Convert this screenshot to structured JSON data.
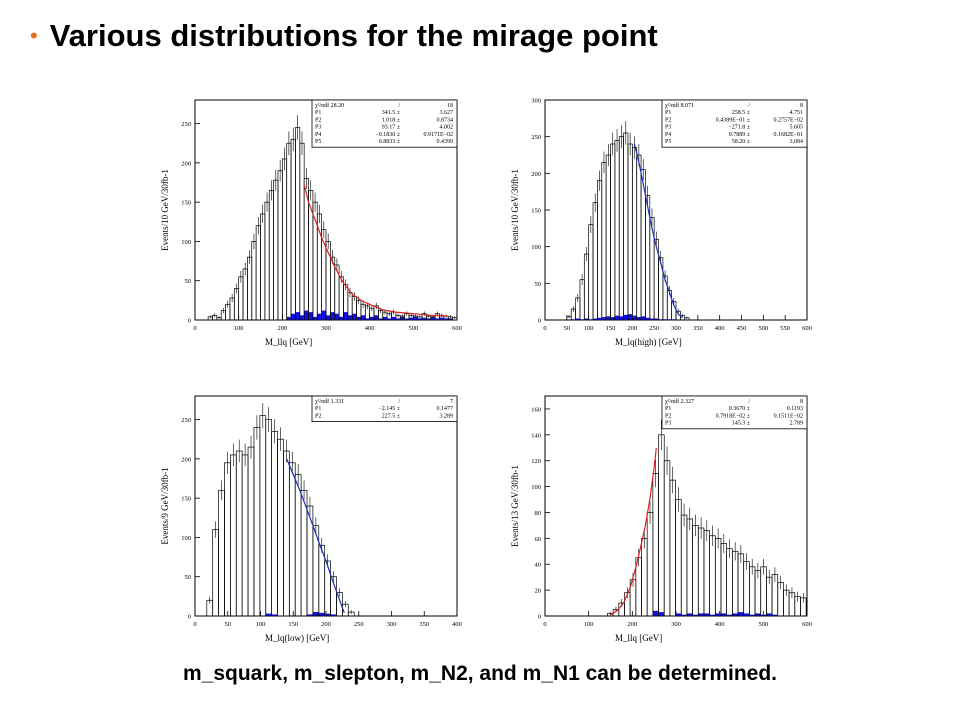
{
  "slide": {
    "bullet": "•",
    "title": "Various distributions for the mirage point",
    "caption": "m_squark, m_slepton, m_N2, and m_N1 can be determined."
  },
  "colors": {
    "bullet": "#e8701a",
    "fit_red": "#e02020",
    "fit_blue": "#2030c0",
    "bg_hist": "#1010e0"
  },
  "chart_data": [
    {
      "type": "bar",
      "ylabel": "Events/10 GeV/30fb-1",
      "xlabel": "M_llq [GeV]",
      "xlim": [
        0,
        600
      ],
      "ylim": [
        0,
        280
      ],
      "xticks": [
        "0",
        "100",
        "200",
        "300",
        "400",
        "500",
        "600"
      ],
      "yticks": [
        "0",
        "50",
        "100",
        "150",
        "200",
        "250"
      ],
      "fit_color": "red",
      "stats": [
        [
          "χ²/ndf 28.20",
          "/",
          "18"
        ],
        [
          "P1",
          "341.5 ±",
          "3.627"
        ],
        [
          "P2",
          "1.018 ±",
          "0.8734"
        ],
        [
          "P3",
          "93.17 ±",
          "4.002"
        ],
        [
          "P4",
          "−0.1830 ±",
          "0.9171E−02"
        ],
        [
          "P5",
          "0.8833 ±",
          "0.4399"
        ]
      ],
      "bin_width": 10,
      "x": [
        30,
        40,
        50,
        60,
        70,
        80,
        90,
        100,
        110,
        120,
        130,
        140,
        150,
        160,
        170,
        180,
        190,
        200,
        210,
        220,
        230,
        240,
        250,
        260,
        270,
        280,
        290,
        300,
        310,
        320,
        330,
        340,
        350,
        360,
        370,
        380,
        390,
        400,
        410,
        420,
        430,
        440,
        450,
        460,
        470,
        480,
        490,
        500,
        510,
        520,
        530,
        540,
        550,
        560,
        570,
        580,
        590
      ],
      "values": [
        4,
        6,
        3,
        12,
        20,
        28,
        40,
        55,
        65,
        80,
        100,
        120,
        135,
        150,
        165,
        178,
        190,
        205,
        225,
        230,
        245,
        225,
        180,
        165,
        150,
        135,
        115,
        100,
        80,
        70,
        55,
        45,
        35,
        30,
        25,
        20,
        18,
        15,
        18,
        12,
        10,
        8,
        10,
        6,
        5,
        8,
        6,
        5,
        4,
        8,
        5,
        4,
        8,
        6,
        5,
        4,
        3
      ],
      "background": {
        "x": [
          210,
          220,
          230,
          240,
          250,
          260,
          270,
          280,
          290,
          300,
          310,
          320,
          330,
          340,
          350,
          360,
          370,
          380,
          390,
          400,
          410,
          420,
          430,
          440,
          450,
          460,
          470,
          480,
          490,
          500,
          510,
          520,
          530,
          540,
          550,
          560,
          570,
          580
        ],
        "values": [
          4,
          8,
          10,
          6,
          12,
          10,
          4,
          8,
          12,
          6,
          10,
          8,
          4,
          10,
          6,
          8,
          4,
          6,
          2,
          4,
          6,
          2,
          4,
          2,
          4,
          2,
          4,
          2,
          3,
          4,
          2,
          3,
          2,
          4,
          2,
          3,
          2,
          2
        ]
      },
      "fit": {
        "x": [
          250,
          260,
          270,
          280,
          290,
          300,
          310,
          320,
          330,
          340,
          350,
          360,
          380,
          400,
          430,
          460,
          500,
          540,
          580
        ],
        "y": [
          172,
          150,
          135,
          120,
          105,
          92,
          80,
          68,
          57,
          47,
          40,
          33,
          25,
          20,
          13,
          10,
          8,
          6,
          5
        ]
      }
    },
    {
      "type": "bar",
      "ylabel": "Events/10 GeV/30fb-1",
      "xlabel": "M_lq(high) [GeV]",
      "xlim": [
        0,
        600
      ],
      "ylim": [
        0,
        300
      ],
      "xticks": [
        "0",
        "50",
        "100",
        "150",
        "200",
        "250",
        "300",
        "350",
        "400",
        "450",
        "500",
        "550",
        "600"
      ],
      "yticks": [
        "0",
        "50",
        "100",
        "150",
        "200",
        "250",
        "300"
      ],
      "fit_color": "blue",
      "stats": [
        [
          "χ²/ndf 8.071",
          "/",
          "8"
        ],
        [
          "P1",
          "258.5 ±",
          "4.751"
        ],
        [
          "P2",
          "0.4389E−01 ±",
          "0.2757E−02"
        ],
        [
          "P3",
          "−271.8 ±",
          "5.605"
        ],
        [
          "P4",
          "0.7889 ±",
          "0.1682E−01"
        ],
        [
          "P5",
          "58.20 ±",
          "3.084"
        ]
      ],
      "bin_width": 10,
      "x": [
        50,
        60,
        70,
        80,
        90,
        100,
        110,
        120,
        130,
        140,
        150,
        160,
        170,
        180,
        190,
        200,
        210,
        220,
        230,
        240,
        250,
        260,
        270,
        280,
        290,
        300,
        310,
        320
      ],
      "values": [
        5,
        15,
        30,
        55,
        90,
        130,
        160,
        190,
        215,
        225,
        240,
        245,
        250,
        255,
        240,
        235,
        225,
        205,
        170,
        140,
        110,
        85,
        60,
        40,
        25,
        12,
        6,
        3
      ],
      "background": {
        "x": [
          60,
          70,
          80,
          90,
          100,
          110,
          120,
          130,
          140,
          150,
          160,
          170,
          180,
          190,
          200,
          210,
          220,
          230,
          240,
          250,
          260,
          270,
          280,
          290
        ],
        "values": [
          1,
          2,
          1,
          2,
          1,
          2,
          3,
          4,
          5,
          4,
          6,
          5,
          7,
          8,
          6,
          4,
          5,
          3,
          2,
          2,
          1,
          1,
          1,
          1
        ]
      },
      "fit": {
        "x": [
          205,
          215,
          225,
          235,
          245,
          255,
          265,
          275,
          285,
          295,
          305,
          315
        ],
        "y": [
          240,
          215,
          185,
          155,
          125,
          100,
          78,
          55,
          38,
          20,
          8,
          3
        ]
      }
    },
    {
      "type": "bar",
      "ylabel": "Events/9 GeV/30fb-1",
      "xlabel": "M_lq(low) [GeV]",
      "xlim": [
        0,
        400
      ],
      "ylim": [
        0,
        280
      ],
      "xticks": [
        "0",
        "50",
        "100",
        "150",
        "200",
        "250",
        "300",
        "350",
        "400"
      ],
      "yticks": [
        "0",
        "50",
        "100",
        "150",
        "200",
        "250"
      ],
      "fit_color": "blue",
      "stats": [
        [
          "χ²/ndf 1.331",
          "/",
          "7"
        ],
        [
          "P1",
          "−2.145 ±",
          "0.1477"
        ],
        [
          "P2",
          "227.5 ±",
          "3.289"
        ]
      ],
      "bin_width": 9,
      "x": [
        18,
        27,
        36,
        45,
        54,
        63,
        72,
        81,
        90,
        99,
        108,
        117,
        126,
        135,
        144,
        153,
        162,
        171,
        180,
        189,
        198,
        207,
        216,
        225,
        234
      ],
      "values": [
        20,
        110,
        160,
        195,
        205,
        210,
        205,
        215,
        240,
        255,
        250,
        235,
        225,
        210,
        195,
        180,
        160,
        140,
        115,
        90,
        70,
        50,
        30,
        15,
        5
      ],
      "background": {
        "x": [
          108,
          117,
          171,
          180,
          189,
          198,
          207
        ],
        "values": [
          3,
          2,
          2,
          5,
          4,
          3,
          2
        ]
      },
      "fit": {
        "x": [
          140,
          150,
          160,
          170,
          180,
          190,
          200,
          210,
          220,
          228
        ],
        "y": [
          200,
          180,
          160,
          138,
          115,
          92,
          70,
          45,
          22,
          4
        ]
      }
    },
    {
      "type": "bar",
      "ylabel": "Events/13 GeV/30fb-1",
      "xlabel": "M_llq [GeV]",
      "xlim": [
        0,
        600
      ],
      "ylim": [
        0,
        170
      ],
      "xticks": [
        "0",
        "100",
        "200",
        "300",
        "400",
        "500",
        "600"
      ],
      "yticks": [
        "0",
        "20",
        "40",
        "60",
        "80",
        "100",
        "120",
        "140",
        "160"
      ],
      "fit_color": "red",
      "stats": [
        [
          "χ²/ndf 2.327",
          "/",
          "8"
        ],
        [
          "P1",
          "0.3670 ±",
          "0.1193"
        ],
        [
          "P2",
          "0.7918E−02 ±",
          "0.1511E−02"
        ],
        [
          "P3",
          "145.3 ±",
          "2.789"
        ]
      ],
      "bin_width": 13,
      "x": [
        143,
        156,
        169,
        182,
        195,
        208,
        221,
        234,
        247,
        260,
        273,
        286,
        299,
        312,
        325,
        338,
        351,
        364,
        377,
        390,
        403,
        416,
        429,
        442,
        455,
        468,
        481,
        494,
        507,
        520,
        533,
        546,
        559,
        572,
        585
      ],
      "values": [
        2,
        5,
        10,
        18,
        28,
        45,
        60,
        80,
        110,
        140,
        120,
        105,
        90,
        78,
        75,
        70,
        68,
        66,
        62,
        60,
        56,
        52,
        50,
        48,
        42,
        38,
        35,
        38,
        30,
        32,
        26,
        20,
        18,
        15,
        14
      ],
      "background": {
        "x": [
          247,
          260,
          299,
          312,
          325,
          338,
          351,
          364,
          377,
          390,
          403,
          416,
          429,
          442,
          455,
          468,
          481,
          494,
          507,
          520
        ],
        "values": [
          4,
          3,
          2,
          1,
          2,
          1,
          2,
          2,
          1,
          2,
          2,
          1,
          2,
          3,
          2,
          1,
          2,
          1,
          2,
          1
        ]
      },
      "fit": {
        "x": [
          150,
          165,
          180,
          195,
          210,
          220,
          230,
          240,
          250,
          255
        ],
        "y": [
          1,
          4,
          10,
          22,
          40,
          55,
          70,
          90,
          115,
          130
        ]
      }
    }
  ]
}
